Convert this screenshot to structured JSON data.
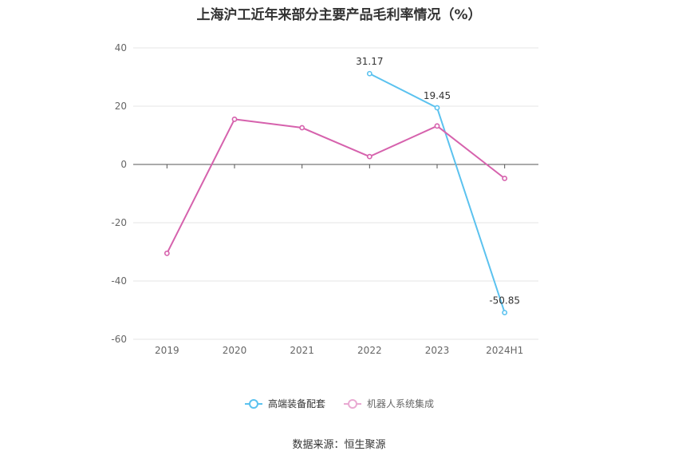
{
  "title": "上海沪工近年来部分主要产品毛利率情况（%）",
  "source": "数据来源：恒生聚源",
  "chart_data": {
    "type": "line",
    "categories": [
      "2019",
      "2020",
      "2021",
      "2022",
      "2023",
      "2024H1"
    ],
    "ylim": [
      -60,
      40
    ],
    "yticks": [
      -60,
      -40,
      -20,
      0,
      20,
      40
    ],
    "grid": true,
    "legend_position": "bottom-center",
    "series": [
      {
        "name": "高端装备配套",
        "color": "#5bc2ef",
        "values": [
          null,
          null,
          null,
          31.17,
          19.45,
          -50.85
        ],
        "data_labels": [
          "",
          "",
          "",
          "31.17",
          "19.45",
          "-50.85"
        ]
      },
      {
        "name": "机器人系统集成",
        "color": "#d662ad",
        "values": [
          -30.5,
          15.5,
          12.6,
          2.7,
          13.2,
          -4.8
        ],
        "data_labels": [
          "",
          "",
          "",
          "",
          "",
          ""
        ]
      }
    ]
  }
}
